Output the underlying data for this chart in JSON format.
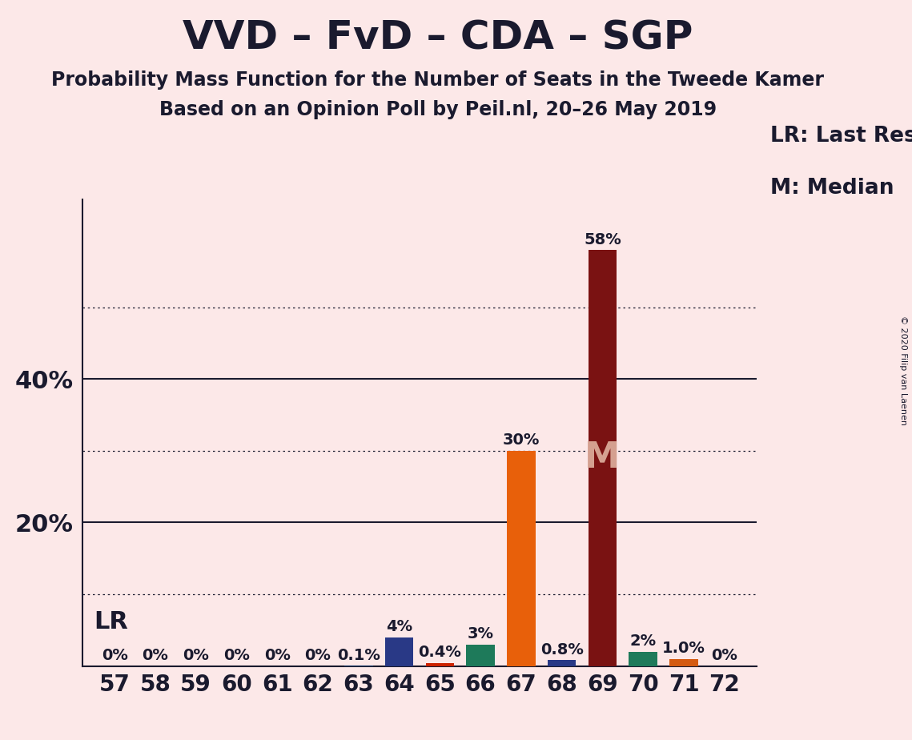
{
  "title": "VVD – FvD – CDA – SGP",
  "subtitle1": "Probability Mass Function for the Number of Seats in the Tweede Kamer",
  "subtitle2": "Based on an Opinion Poll by Peil.nl, 20–26 May 2019",
  "copyright": "© 2020 Filip van Laenen",
  "seats": [
    57,
    58,
    59,
    60,
    61,
    62,
    63,
    64,
    65,
    66,
    67,
    68,
    69,
    70,
    71,
    72
  ],
  "values": [
    0.0,
    0.0,
    0.0,
    0.0,
    0.0,
    0.0,
    0.001,
    0.04,
    0.004,
    0.03,
    0.3,
    0.008,
    0.58,
    0.02,
    0.01,
    0.0
  ],
  "labels": [
    "0%",
    "0%",
    "0%",
    "0%",
    "0%",
    "0%",
    "0.1%",
    "4%",
    "0.4%",
    "3%",
    "30%",
    "0.8%",
    "58%",
    "2%",
    "1.0%",
    "0%"
  ],
  "bar_colors": [
    "#1a3a6b",
    "#1a3a6b",
    "#1a3a6b",
    "#1a3a6b",
    "#1a3a6b",
    "#1a3a6b",
    "#1a3a6b",
    "#293986",
    "#cc2200",
    "#1e7a5a",
    "#e8600a",
    "#293986",
    "#7a1212",
    "#1e7a5a",
    "#d45a10",
    "#1a3a6b"
  ],
  "background_color": "#fce8e8",
  "lr_seat": 63,
  "median_seat": 69,
  "ylim": [
    0,
    0.65
  ],
  "text_color": "#1a1a2e",
  "title_fontsize": 36,
  "subtitle_fontsize": 17,
  "label_fontsize": 14,
  "tick_fontsize": 20,
  "legend_fontsize": 19,
  "ytick_vals": [
    0.2,
    0.4
  ],
  "ytick_labels": [
    "20%",
    "40%"
  ],
  "dotted_gridlines": [
    0.1,
    0.3,
    0.5
  ],
  "solid_gridlines": [
    0.2,
    0.4
  ],
  "bar_width": 0.7
}
